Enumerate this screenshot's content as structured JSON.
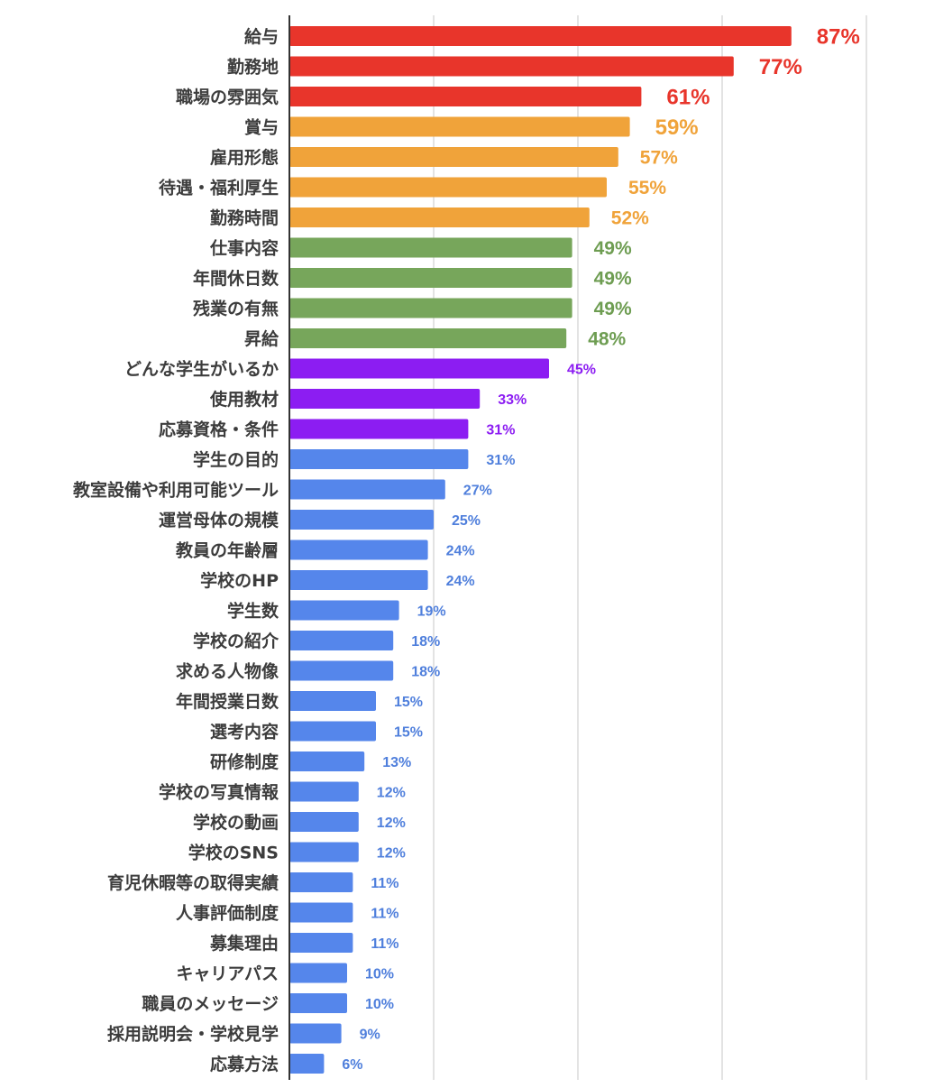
{
  "chart_data": {
    "type": "bar",
    "orientation": "horizontal",
    "title": "",
    "xlabel": "",
    "ylabel": "",
    "xlim": [
      0,
      100
    ],
    "grid": true,
    "legend": "none",
    "categories": [
      "給与",
      "勤務地",
      "職場の雰囲気",
      "賞与",
      "雇用形態",
      "待遇・福利厚生",
      "勤務時間",
      "仕事内容",
      "年間休日数",
      "残業の有無",
      "昇給",
      "どんな学生がいるか",
      "使用教材",
      "応募資格・条件",
      "学生の目的",
      "教室設備や利用可能ツール",
      "運営母体の規模",
      "教員の年齢層",
      "学校のHP",
      "学生数",
      "学校の紹介",
      "求める人物像",
      "年間授業日数",
      "選考内容",
      "研修制度",
      "学校の写真情報",
      "学校の動画",
      "学校のSNS",
      "育児休暇等の取得実績",
      "人事評価制度",
      "募集理由",
      "キャリアパス",
      "職員のメッセージ",
      "採用説明会・学校見学",
      "応募方法"
    ],
    "values": [
      87,
      77,
      61,
      59,
      57,
      55,
      52,
      49,
      49,
      49,
      48,
      45,
      33,
      31,
      31,
      27,
      25,
      24,
      24,
      19,
      18,
      18,
      15,
      15,
      13,
      12,
      12,
      12,
      11,
      11,
      11,
      10,
      10,
      9,
      6
    ],
    "value_labels": [
      "87%",
      "77%",
      "61%",
      "59%",
      "57%",
      "55%",
      "52%",
      "49%",
      "49%",
      "49%",
      "48%",
      "45%",
      "33%",
      "31%",
      "31%",
      "27%",
      "25%",
      "24%",
      "24%",
      "19%",
      "18%",
      "18%",
      "15%",
      "15%",
      "13%",
      "12%",
      "12%",
      "12%",
      "11%",
      "11%",
      "11%",
      "10%",
      "10%",
      "9%",
      "6%"
    ],
    "bar_colors": [
      "#e8352b",
      "#e8352b",
      "#e8352b",
      "#f0a33a",
      "#f0a33a",
      "#f0a33a",
      "#f0a33a",
      "#77a65b",
      "#77a65b",
      "#77a65b",
      "#77a65b",
      "#8c1df2",
      "#8c1df2",
      "#8c1df2",
      "#5586eb",
      "#5586eb",
      "#5586eb",
      "#5586eb",
      "#5586eb",
      "#5586eb",
      "#5586eb",
      "#5586eb",
      "#5586eb",
      "#5586eb",
      "#5586eb",
      "#5586eb",
      "#5586eb",
      "#5586eb",
      "#5586eb",
      "#5586eb",
      "#5586eb",
      "#5586eb",
      "#5586eb",
      "#5586eb",
      "#5586eb"
    ],
    "label_colors": [
      "#e8352b",
      "#e8352b",
      "#e8352b",
      "#f0a33a",
      "#f0a33a",
      "#f0a33a",
      "#f0a33a",
      "#6e9d52",
      "#6e9d52",
      "#6e9d52",
      "#6e9d52",
      "#8c1df2",
      "#8c1df2",
      "#8c1df2",
      "#4f7fdc",
      "#4f7fdc",
      "#4f7fdc",
      "#4f7fdc",
      "#4f7fdc",
      "#4f7fdc",
      "#4f7fdc",
      "#4f7fdc",
      "#4f7fdc",
      "#4f7fdc",
      "#4f7fdc",
      "#4f7fdc",
      "#4f7fdc",
      "#4f7fdc",
      "#4f7fdc",
      "#4f7fdc",
      "#4f7fdc",
      "#4f7fdc",
      "#4f7fdc",
      "#4f7fdc",
      "#4f7fdc"
    ],
    "axis_color": "#333333",
    "grid_color": "#d0d0d0",
    "category_label_color": "#3c3c3c"
  }
}
